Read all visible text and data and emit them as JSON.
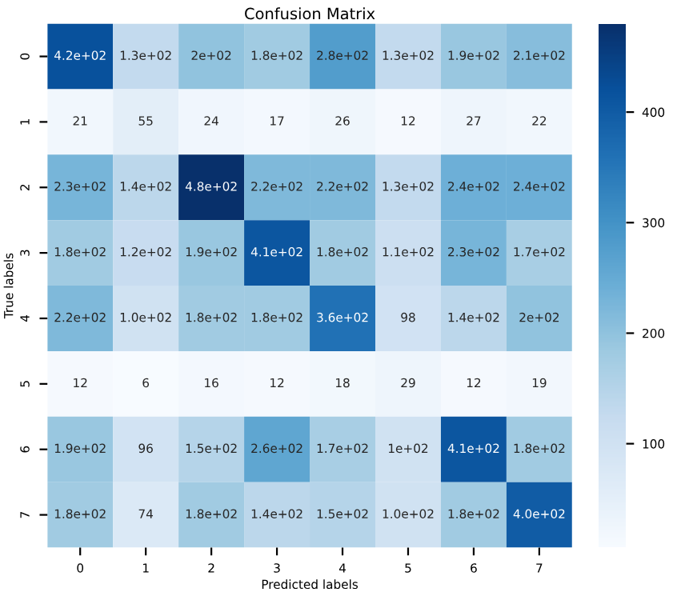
{
  "chart_data": {
    "type": "heatmap",
    "title": "Confusion Matrix",
    "xlabel": "Predicted labels",
    "ylabel": "True labels",
    "categories": [
      "0",
      "1",
      "2",
      "3",
      "4",
      "5",
      "6",
      "7"
    ],
    "y_categories": [
      "0",
      "1",
      "2",
      "3",
      "4",
      "5",
      "6",
      "7"
    ],
    "cells": [
      [
        420,
        130,
        200,
        180,
        280,
        130,
        190,
        210
      ],
      [
        21,
        55,
        24,
        17,
        26,
        12,
        27,
        22
      ],
      [
        230,
        140,
        480,
        220,
        220,
        130,
        240,
        240
      ],
      [
        180,
        120,
        190,
        410,
        180,
        110,
        230,
        170
      ],
      [
        220,
        100,
        180,
        180,
        360,
        98,
        140,
        200
      ],
      [
        12,
        6,
        16,
        12,
        18,
        29,
        12,
        19
      ],
      [
        190,
        96,
        150,
        260,
        170,
        100,
        410,
        180
      ],
      [
        180,
        74,
        180,
        140,
        150,
        100,
        180,
        400
      ]
    ],
    "cell_labels": [
      [
        "4.2e+02",
        "1.3e+02",
        "2e+02",
        "1.8e+02",
        "2.8e+02",
        "1.3e+02",
        "1.9e+02",
        "2.1e+02"
      ],
      [
        "21",
        "55",
        "24",
        "17",
        "26",
        "12",
        "27",
        "22"
      ],
      [
        "2.3e+02",
        "1.4e+02",
        "4.8e+02",
        "2.2e+02",
        "2.2e+02",
        "1.3e+02",
        "2.4e+02",
        "2.4e+02"
      ],
      [
        "1.8e+02",
        "1.2e+02",
        "1.9e+02",
        "4.1e+02",
        "1.8e+02",
        "1.1e+02",
        "2.3e+02",
        "1.7e+02"
      ],
      [
        "2.2e+02",
        "1.0e+02",
        "1.8e+02",
        "1.8e+02",
        "3.6e+02",
        "98",
        "1.4e+02",
        "2e+02"
      ],
      [
        "12",
        "6",
        "16",
        "12",
        "18",
        "29",
        "12",
        "19"
      ],
      [
        "1.9e+02",
        "96",
        "1.5e+02",
        "2.6e+02",
        "1.7e+02",
        "1e+02",
        "4.1e+02",
        "1.8e+02"
      ],
      [
        "1.8e+02",
        "74",
        "1.8e+02",
        "1.4e+02",
        "1.5e+02",
        "1.0e+02",
        "1.8e+02",
        "4.0e+02"
      ]
    ],
    "clim": [
      6,
      480
    ],
    "cticks": [
      100,
      200,
      300,
      400
    ]
  }
}
